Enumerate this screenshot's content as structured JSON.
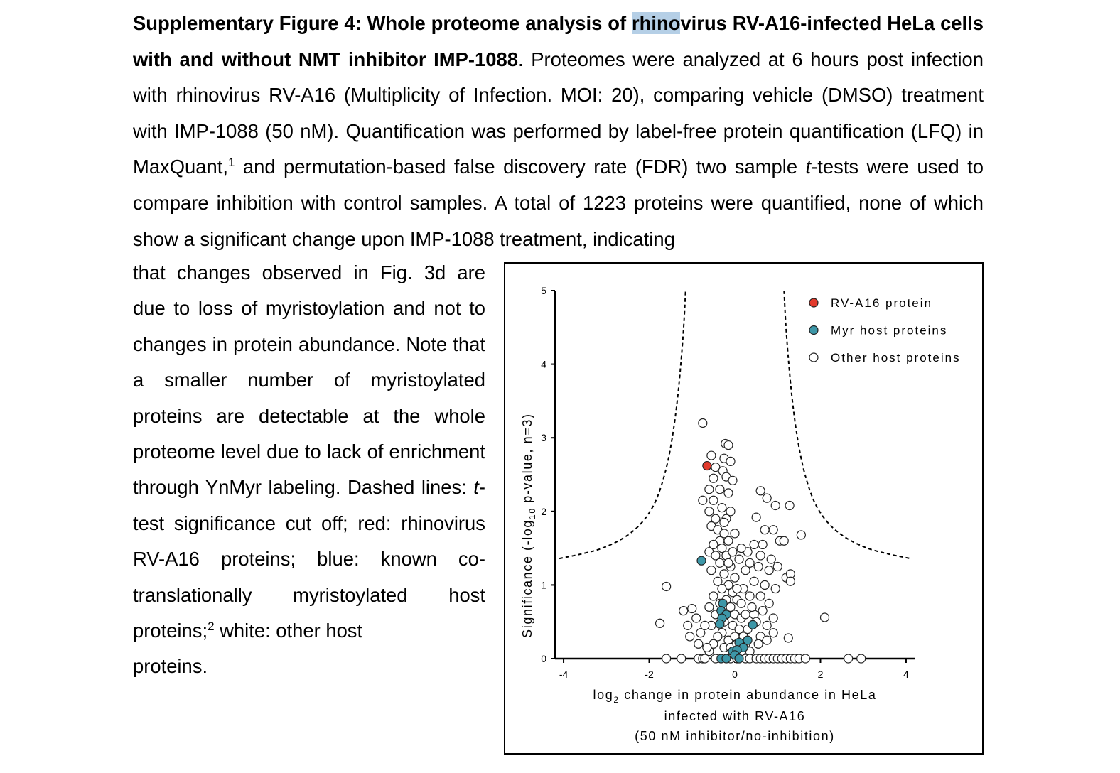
{
  "caption": {
    "lead_a": "Supplementary Figure 4: Whole proteome analysis of ",
    "lead_highlight": "rhino",
    "lead_b": "virus RV-A16-infected HeLa cells with and without NMT inhibitor IMP-1088",
    "body_a": ". Proteomes were analyzed at 6 hours post infection with rhinovirus RV-A16 (Multiplicity of Infection. MOI: 20), comparing vehicle (DMSO) treatment with IMP-1088 (50 nM). Quantification was performed by label-free protein quantification (LFQ) in MaxQuant,",
    "ref1": "1",
    "body_b": " and permutation-based false discovery rate (FDR) two sample ",
    "italic_t": "t",
    "body_c": "-tests were used to compare inhibition with control samples. A total of 1223 proteins were quantified, none of which show a significant change upon IMP-1088 treatment, indicating",
    "side_a": "that changes observed in Fig. 3d are due to loss of myristoylation and not to changes in protein abundance. Note that a smaller number of myristoylated proteins are detectable at the whole proteome level due to lack of enrichment through YnMyr labeling. Dashed lines: ",
    "side_italic_t": "t",
    "side_b": "-test significance cut off; red: rhinovirus RV-A16 proteins; blue: known co-translationally myristoylated host proteins;",
    "ref2": "2",
    "side_c": " white: other host",
    "side_last": "proteins."
  },
  "chart_data": {
    "type": "scatter",
    "title": "",
    "xlabel_line1_pre": "log",
    "xlabel_sub": "2",
    "xlabel_line1_post": " change in protein abundance in HeLa",
    "xlabel_line2": "infected with RV-A16",
    "xlabel_line3": "(50 nM inhibitor/no-inhibition)",
    "ylabel_pre": "Significance (-log",
    "ylabel_sub": "10",
    "ylabel_post": " p-value, n=3)",
    "xlim": [
      -4.2,
      4.2
    ],
    "ylim": [
      0,
      5
    ],
    "x_ticks": [
      -4,
      -2,
      0,
      2,
      4
    ],
    "x_tick_labels": [
      "-4",
      "-2",
      "0",
      "2",
      "4"
    ],
    "y_ticks": [
      0,
      1,
      2,
      3,
      4,
      5
    ],
    "y_tick_labels": [
      "0",
      "1",
      "2",
      "3",
      "4",
      "5"
    ],
    "legend_position": "top-right",
    "legend": [
      {
        "label": "RV-A16 protein",
        "color": "#e23a2c"
      },
      {
        "label": "Myr host proteins",
        "color": "#3d97a8"
      },
      {
        "label": "Other host proteins",
        "color": "#ffffff"
      }
    ],
    "cutoff_curve": {
      "style": "dashed",
      "left": [
        [
          -4.1,
          1.36
        ],
        [
          -3.6,
          1.42
        ],
        [
          -3.1,
          1.5
        ],
        [
          -2.6,
          1.64
        ],
        [
          -2.2,
          1.83
        ],
        [
          -1.9,
          2.08
        ],
        [
          -1.7,
          2.38
        ],
        [
          -1.55,
          2.72
        ],
        [
          -1.43,
          3.12
        ],
        [
          -1.33,
          3.58
        ],
        [
          -1.25,
          4.08
        ],
        [
          -1.19,
          4.55
        ],
        [
          -1.15,
          5.0
        ]
      ],
      "right": [
        [
          1.15,
          5.0
        ],
        [
          1.19,
          4.55
        ],
        [
          1.25,
          4.08
        ],
        [
          1.33,
          3.58
        ],
        [
          1.43,
          3.12
        ],
        [
          1.55,
          2.72
        ],
        [
          1.7,
          2.38
        ],
        [
          1.9,
          2.08
        ],
        [
          2.2,
          1.83
        ],
        [
          2.6,
          1.64
        ],
        [
          3.1,
          1.5
        ],
        [
          3.6,
          1.42
        ],
        [
          4.1,
          1.36
        ]
      ]
    },
    "series": [
      {
        "name": "RV-A16 protein",
        "color": "#e23a2c",
        "points": [
          [
            -0.65,
            2.62
          ]
        ]
      },
      {
        "name": "Myr host proteins",
        "color": "#3d97a8",
        "points": [
          [
            -0.78,
            1.33
          ],
          [
            -0.28,
            0.75
          ],
          [
            -0.32,
            0.65
          ],
          [
            -0.2,
            0.6
          ],
          [
            -0.3,
            0.55
          ],
          [
            -0.35,
            0.47
          ],
          [
            0.42,
            0.46
          ],
          [
            0.3,
            0.25
          ],
          [
            0.1,
            0.22
          ],
          [
            0.2,
            0.15
          ],
          [
            -0.05,
            0.1
          ],
          [
            0.05,
            0.12
          ],
          [
            0.0,
            0.05
          ],
          [
            -0.32,
            0.0
          ],
          [
            -0.2,
            0.0
          ],
          [
            0.1,
            0.0
          ]
        ]
      },
      {
        "name": "Other host proteins",
        "color": "#ffffff",
        "points": [
          [
            -0.75,
            3.2
          ],
          [
            -0.22,
            2.92
          ],
          [
            -0.15,
            2.9
          ],
          [
            -0.55,
            2.76
          ],
          [
            -0.25,
            2.72
          ],
          [
            -0.1,
            2.68
          ],
          [
            -0.45,
            2.6
          ],
          [
            -0.28,
            2.55
          ],
          [
            -0.2,
            2.47
          ],
          [
            -0.05,
            2.42
          ],
          [
            -0.5,
            2.45
          ],
          [
            -0.6,
            2.3
          ],
          [
            -0.35,
            2.3
          ],
          [
            -0.15,
            2.25
          ],
          [
            -0.75,
            2.15
          ],
          [
            -0.5,
            2.15
          ],
          [
            -0.3,
            2.05
          ],
          [
            -0.6,
            2.0
          ],
          [
            -0.45,
            1.9
          ],
          [
            -0.2,
            1.9
          ],
          [
            -0.55,
            1.8
          ],
          [
            -0.4,
            1.75
          ],
          [
            -0.25,
            1.7
          ],
          [
            -0.35,
            1.6
          ],
          [
            -0.15,
            1.6
          ],
          [
            -0.5,
            1.55
          ],
          [
            -0.3,
            1.5
          ],
          [
            -0.6,
            1.45
          ],
          [
            -0.45,
            1.4
          ],
          [
            -0.2,
            1.4
          ],
          [
            -0.35,
            1.3
          ],
          [
            -0.1,
            1.25
          ],
          [
            -0.55,
            1.2
          ],
          [
            -0.25,
            1.15
          ],
          [
            -0.4,
            1.05
          ],
          [
            -0.15,
            1.0
          ],
          [
            -0.3,
            0.95
          ],
          [
            -0.05,
            0.9
          ],
          [
            -0.5,
            0.85
          ],
          [
            -0.2,
            0.8
          ],
          [
            -0.35,
            0.75
          ],
          [
            0.05,
            0.8
          ],
          [
            -0.6,
            0.7
          ],
          [
            -0.1,
            0.7
          ],
          [
            -0.45,
            0.6
          ],
          [
            0.0,
            0.6
          ],
          [
            -0.25,
            0.5
          ],
          [
            0.15,
            0.55
          ],
          [
            -0.55,
            0.45
          ],
          [
            -0.05,
            0.45
          ],
          [
            -0.3,
            0.35
          ],
          [
            0.1,
            0.4
          ],
          [
            -0.4,
            0.3
          ],
          [
            0.2,
            0.3
          ],
          [
            -0.15,
            0.25
          ],
          [
            0.25,
            0.2
          ],
          [
            -0.5,
            0.2
          ],
          [
            0.0,
            0.3
          ],
          [
            -0.25,
            0.15
          ],
          [
            0.35,
            0.1
          ],
          [
            -0.1,
            0.15
          ],
          [
            0.15,
            0.1
          ],
          [
            -0.6,
            0.1
          ],
          [
            0.05,
            0.2
          ],
          [
            0.3,
            0.4
          ],
          [
            0.45,
            0.6
          ],
          [
            0.6,
            2.28
          ],
          [
            0.75,
            2.18
          ],
          [
            0.95,
            2.08
          ],
          [
            1.28,
            2.08
          ],
          [
            0.5,
            1.92
          ],
          [
            0.7,
            1.75
          ],
          [
            0.9,
            1.75
          ],
          [
            0.45,
            1.55
          ],
          [
            0.65,
            1.55
          ],
          [
            1.05,
            1.6
          ],
          [
            1.15,
            1.6
          ],
          [
            1.55,
            1.68
          ],
          [
            0.3,
            1.45
          ],
          [
            0.6,
            1.4
          ],
          [
            0.85,
            1.35
          ],
          [
            0.25,
            1.2
          ],
          [
            0.55,
            1.25
          ],
          [
            0.8,
            1.2
          ],
          [
            1.0,
            1.25
          ],
          [
            1.2,
            1.1
          ],
          [
            1.3,
            1.15
          ],
          [
            1.3,
            1.05
          ],
          [
            0.45,
            1.05
          ],
          [
            0.7,
            1.0
          ],
          [
            0.2,
            0.95
          ],
          [
            0.95,
            0.95
          ],
          [
            0.35,
            0.85
          ],
          [
            0.6,
            0.85
          ],
          [
            0.15,
            0.75
          ],
          [
            0.8,
            0.75
          ],
          [
            0.4,
            0.7
          ],
          [
            0.65,
            0.65
          ],
          [
            0.25,
            0.6
          ],
          [
            0.9,
            0.55
          ],
          [
            0.5,
            0.5
          ],
          [
            0.75,
            0.45
          ],
          [
            -0.15,
            1.3
          ],
          [
            0.1,
            1.35
          ],
          [
            0.0,
            1.1
          ],
          [
            -0.05,
            1.45
          ],
          [
            0.15,
            1.5
          ],
          [
            0.35,
            1.3
          ],
          [
            0.05,
            0.95
          ],
          [
            -0.25,
            1.85
          ],
          [
            -0.1,
            2.0
          ],
          [
            0.0,
            1.7
          ],
          [
            -1.6,
            0.98
          ],
          [
            -1.75,
            0.48
          ],
          [
            -1.2,
            0.65
          ],
          [
            -1.0,
            0.68
          ],
          [
            -0.8,
            0.35
          ],
          [
            -1.05,
            0.3
          ],
          [
            -0.9,
            0.55
          ],
          [
            -1.1,
            0.45
          ],
          [
            -0.7,
            0.45
          ],
          [
            -0.85,
            0.2
          ],
          [
            -0.65,
            0.15
          ],
          [
            0.6,
            0.3
          ],
          [
            0.75,
            0.25
          ],
          [
            1.25,
            0.28
          ],
          [
            2.1,
            0.56
          ],
          [
            0.9,
            0.35
          ],
          [
            0.55,
            0.2
          ],
          [
            -1.6,
            0.0
          ],
          [
            -1.25,
            0.0
          ],
          [
            -0.85,
            0.0
          ],
          [
            -0.75,
            0.0
          ],
          [
            -0.7,
            0.0
          ],
          [
            -0.45,
            0.0
          ],
          [
            -0.1,
            0.0
          ],
          [
            0.05,
            0.0
          ],
          [
            0.25,
            0.0
          ],
          [
            0.35,
            0.0
          ],
          [
            0.5,
            0.0
          ],
          [
            0.6,
            0.0
          ],
          [
            0.7,
            0.0
          ],
          [
            0.8,
            0.0
          ],
          [
            0.9,
            0.0
          ],
          [
            1.0,
            0.0
          ],
          [
            1.1,
            0.0
          ],
          [
            1.2,
            0.0
          ],
          [
            1.3,
            0.0
          ],
          [
            1.4,
            0.0
          ],
          [
            1.5,
            0.0
          ],
          [
            1.65,
            0.0
          ],
          [
            2.65,
            0.0
          ],
          [
            2.95,
            0.0
          ]
        ]
      }
    ]
  }
}
